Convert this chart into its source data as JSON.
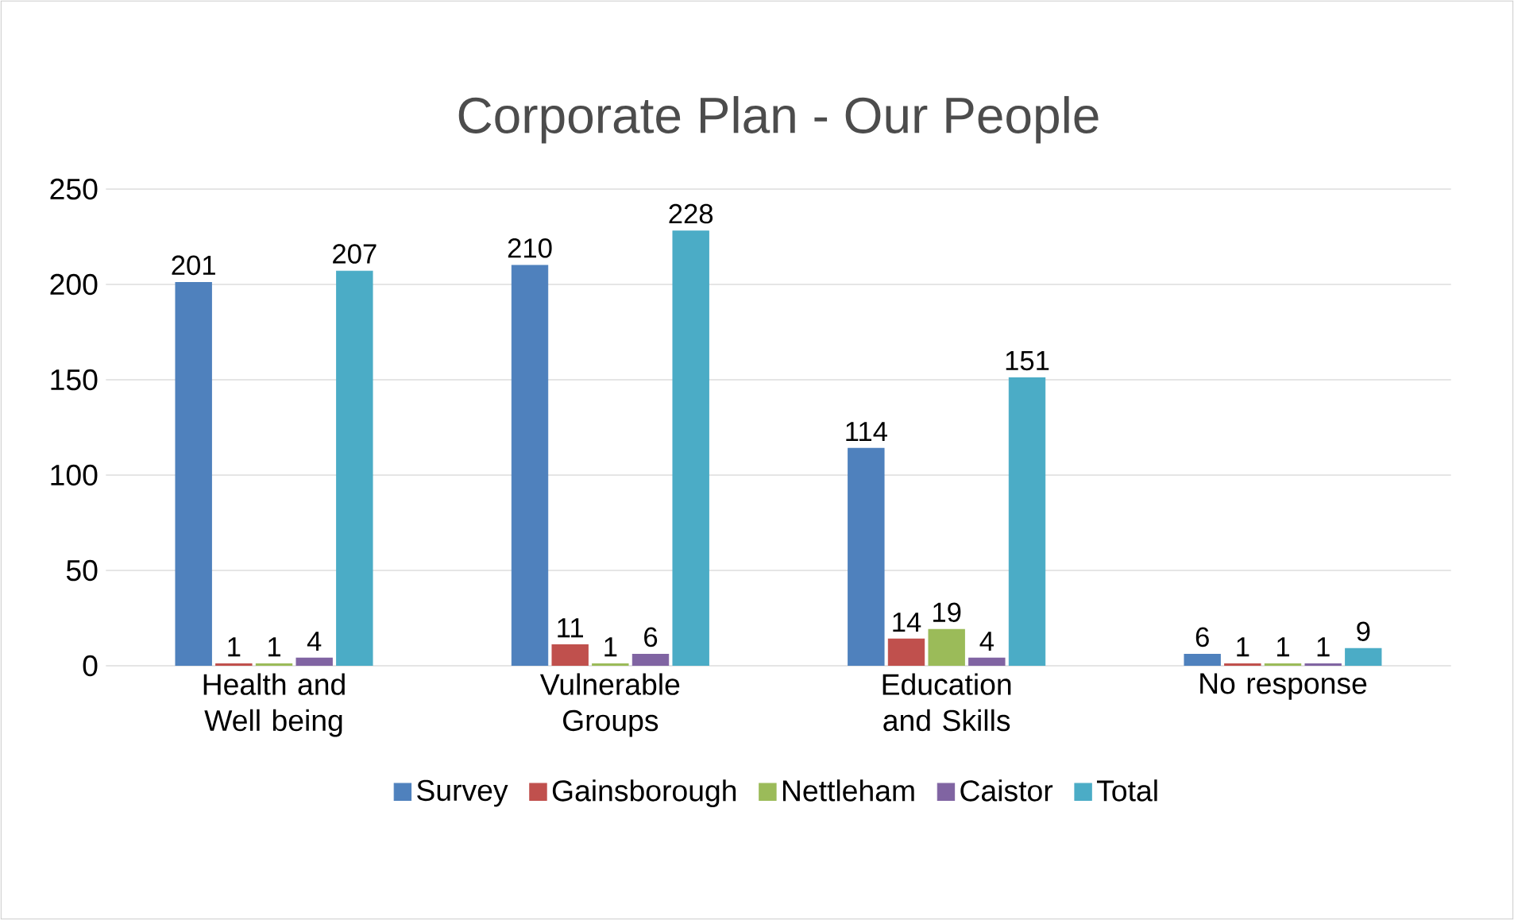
{
  "chart_data": {
    "type": "bar",
    "title": "Corporate Plan - Our People",
    "categories": [
      "Health and Well being",
      "Vulnerable Groups",
      "Education and Skills",
      "No response"
    ],
    "series": [
      {
        "name": "Survey",
        "color": "#4f81bd",
        "values": [
          201,
          210,
          114,
          6
        ]
      },
      {
        "name": "Gainsborough",
        "color": "#c0504d",
        "values": [
          1,
          11,
          14,
          1
        ]
      },
      {
        "name": "Nettleham",
        "color": "#9bbb59",
        "values": [
          1,
          1,
          19,
          1
        ]
      },
      {
        "name": "Caistor",
        "color": "#8064a2",
        "values": [
          4,
          6,
          4,
          1
        ]
      },
      {
        "name": "Total",
        "color": "#4bacc6",
        "values": [
          207,
          228,
          151,
          9
        ]
      }
    ],
    "ylim": [
      0,
      250
    ],
    "yticks": [
      0,
      50,
      100,
      150,
      200,
      250
    ],
    "grid": "y",
    "legend": "bottom",
    "data_labels": true
  }
}
